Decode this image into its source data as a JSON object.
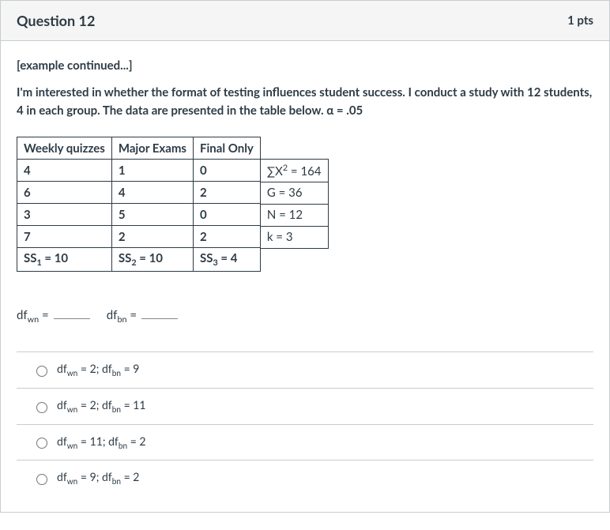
{
  "header": {
    "title": "Question 12",
    "points": "1 pts"
  },
  "body": {
    "example_label": "[example continued...]",
    "prompt_html": "I'm interested in whether the format of testing influences student success.  I conduct a study with 12 students, 4 in each group.  The data are presented in the table below.  α = .05"
  },
  "table": {
    "headers": [
      "Weekly quizzes",
      "Major Exams",
      "Final Only"
    ],
    "rows": [
      [
        "4",
        "1",
        "0"
      ],
      [
        "6",
        "4",
        "2"
      ],
      [
        "3",
        "5",
        "0"
      ],
      [
        "7",
        "2",
        "2"
      ]
    ],
    "footer_html": [
      "SS<sub>1</sub> = 10",
      "SS<sub>2</sub> = 10",
      "SS<sub>3</sub> = 4"
    ]
  },
  "stats_html": [
    "∑X<sup>2</sup> = 164",
    "G = 36",
    "N = 12",
    "k = 3"
  ],
  "fill_blank": {
    "left_html": "df<sub>wn</sub> =",
    "right_html": "df<sub>bn</sub> ="
  },
  "options_html": [
    "df<sub>wn</sub> = 2; df<sub>bn</sub> = 9",
    "df<sub>wn</sub> = 2; df<sub>bn</sub> = 11",
    "df<sub>wn</sub> = 11; df<sub>bn</sub> = 2",
    "df<sub>wn</sub> = 9; df<sub>bn</sub> = 2"
  ]
}
